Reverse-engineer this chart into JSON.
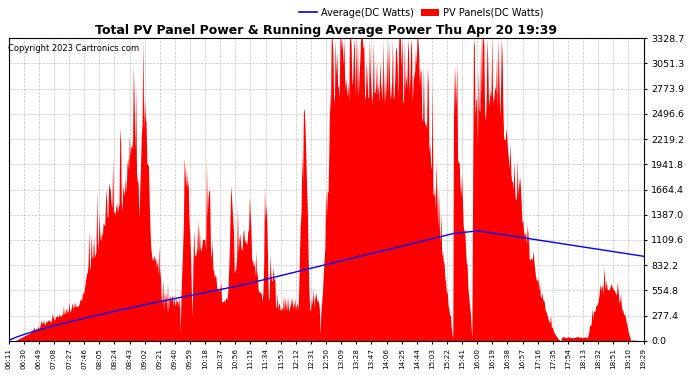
{
  "title": "Total PV Panel Power & Running Average Power Thu Apr 20 19:39",
  "copyright": "Copyright 2023 Cartronics.com",
  "legend_avg": "Average(DC Watts)",
  "legend_pv": "PV Panels(DC Watts)",
  "ylabel_right_values": [
    0.0,
    277.4,
    554.8,
    832.2,
    1109.6,
    1387.0,
    1664.4,
    1941.8,
    2219.2,
    2496.6,
    2773.9,
    3051.3,
    3328.7
  ],
  "ymax": 3328.7,
  "ymin": 0.0,
  "bg_color": "#ffffff",
  "plot_bg_color": "#ffffff",
  "grid_color": "#aaaaaa",
  "pv_color": "#ff0000",
  "avg_color": "#0000ff",
  "title_color": "#000000",
  "copyright_color": "#000000",
  "x_tick_labels": [
    "06:11",
    "06:30",
    "06:49",
    "07:08",
    "07:27",
    "07:46",
    "08:05",
    "08:24",
    "08:43",
    "09:02",
    "09:21",
    "09:40",
    "09:59",
    "10:18",
    "10:37",
    "10:56",
    "11:15",
    "11:34",
    "11:53",
    "12:12",
    "12:31",
    "12:50",
    "13:09",
    "13:28",
    "13:47",
    "14:06",
    "14:25",
    "14:44",
    "15:03",
    "15:22",
    "15:41",
    "16:00",
    "16:19",
    "16:38",
    "16:57",
    "17:16",
    "17:35",
    "17:54",
    "18:13",
    "18:32",
    "18:51",
    "19:10",
    "19:29"
  ],
  "n_points": 800,
  "seed": 99
}
